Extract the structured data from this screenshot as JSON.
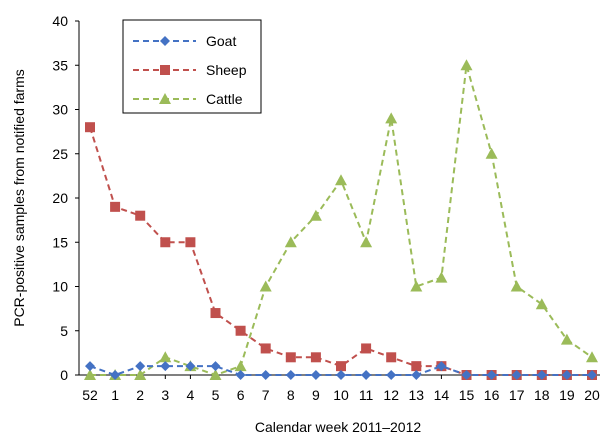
{
  "chart_data": {
    "type": "line",
    "xlabel": "Calendar week 2011–2012",
    "ylabel": "PCR-positive samples from notified farms",
    "ylim": [
      0,
      40
    ],
    "yticks": [
      "0",
      "5",
      "10",
      "15",
      "20",
      "25",
      "30",
      "35",
      "40"
    ],
    "categories": [
      "52",
      "1",
      "2",
      "3",
      "4",
      "5",
      "6",
      "7",
      "8",
      "9",
      "10",
      "11",
      "12",
      "13",
      "14",
      "15",
      "16",
      "17",
      "18",
      "19",
      "20"
    ],
    "grid": false,
    "legend_position": "top-left",
    "series": [
      {
        "name": "Goat",
        "color": "#4472c4",
        "marker": "diamond",
        "values": [
          1,
          0,
          1,
          1,
          1,
          1,
          0,
          0,
          0,
          0,
          0,
          0,
          0,
          0,
          1,
          0,
          0,
          0,
          0,
          0,
          0
        ]
      },
      {
        "name": "Sheep",
        "color": "#c0504d",
        "marker": "square",
        "values": [
          28,
          19,
          18,
          15,
          15,
          7,
          5,
          3,
          2,
          2,
          1,
          3,
          2,
          1,
          1,
          0,
          0,
          0,
          0,
          0,
          0
        ]
      },
      {
        "name": "Cattle",
        "color": "#9bbb59",
        "marker": "triangle",
        "values": [
          0,
          0,
          0,
          2,
          1,
          0,
          1,
          10,
          15,
          18,
          22,
          15,
          29,
          10,
          11,
          35,
          25,
          10,
          8,
          4,
          2
        ]
      }
    ]
  }
}
